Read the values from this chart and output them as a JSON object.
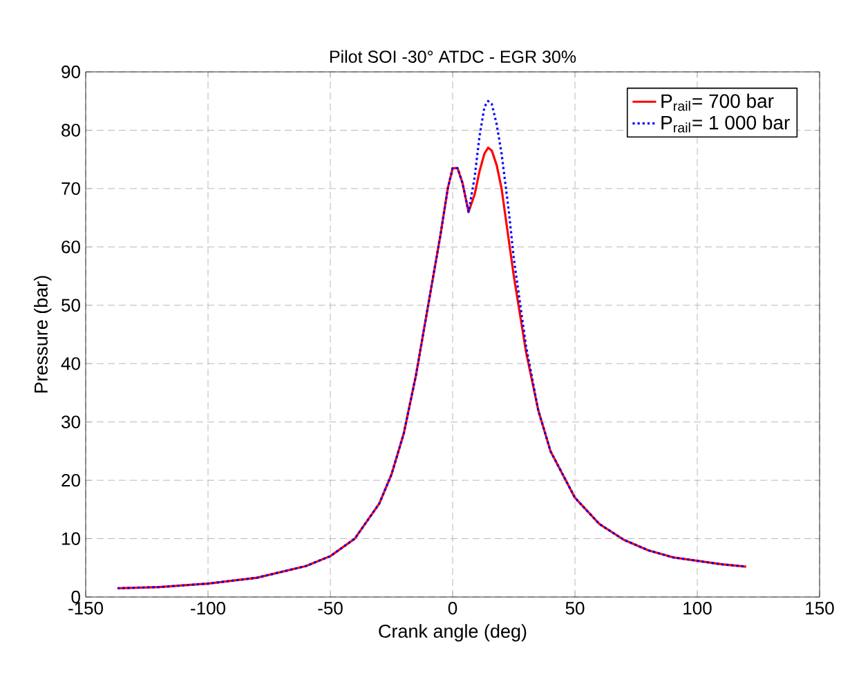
{
  "chart_data": {
    "type": "line",
    "title": "Pilot SOI -30° ATDC - EGR 30%",
    "xlabel": "Crank angle (deg)",
    "ylabel": "Pressure (bar)",
    "xlim": [
      -150,
      150
    ],
    "ylim": [
      0,
      90
    ],
    "xticks": [
      -150,
      -100,
      -50,
      0,
      50,
      100,
      150
    ],
    "yticks": [
      0,
      10,
      20,
      30,
      40,
      50,
      60,
      70,
      80,
      90
    ],
    "grid": true,
    "legend": "top right",
    "marker": "none",
    "series": [
      {
        "name": "P$_{rail}$= 700 bar",
        "color": "#ff0000",
        "line_style": "solid",
        "x": [
          -137,
          -120,
          -100,
          -80,
          -60,
          -50,
          -40,
          -30,
          -25,
          -20,
          -15,
          -10,
          -5,
          -2,
          0,
          2,
          4,
          6.5,
          9,
          11,
          13,
          14.5,
          16,
          18,
          20,
          25,
          30,
          35,
          40,
          50,
          60,
          70,
          80,
          90,
          100,
          110,
          120
        ],
        "values": [
          1.5,
          1.7,
          2.3,
          3.3,
          5.3,
          7,
          10,
          16,
          21,
          28,
          38,
          50,
          62,
          70,
          73.5,
          73.5,
          71,
          66,
          69,
          73,
          76,
          77,
          76.5,
          74,
          70,
          55,
          42,
          32,
          25,
          17,
          12.5,
          9.8,
          8,
          6.8,
          6.2,
          5.6,
          5.2
        ]
      },
      {
        "name": "P$_{rail}$= 1 000 bar",
        "color": "#0000ff",
        "line_style": "dotted",
        "x": [
          -137,
          -120,
          -100,
          -80,
          -60,
          -50,
          -40,
          -30,
          -25,
          -20,
          -15,
          -10,
          -5,
          -2,
          0,
          2,
          4,
          6.5,
          9,
          11,
          13,
          14.5,
          16,
          18,
          20,
          23,
          25,
          30,
          35,
          40,
          50,
          60,
          70,
          80,
          90,
          100,
          110,
          120
        ],
        "values": [
          1.5,
          1.7,
          2.3,
          3.3,
          5.3,
          7,
          10,
          16,
          21,
          28,
          38,
          50,
          62,
          70,
          73.5,
          73.5,
          71,
          66,
          72,
          79,
          84,
          85,
          84.5,
          81,
          76,
          66,
          58,
          43,
          32,
          25,
          17,
          12.5,
          9.8,
          8,
          6.8,
          6.2,
          5.6,
          5.2
        ]
      }
    ]
  }
}
